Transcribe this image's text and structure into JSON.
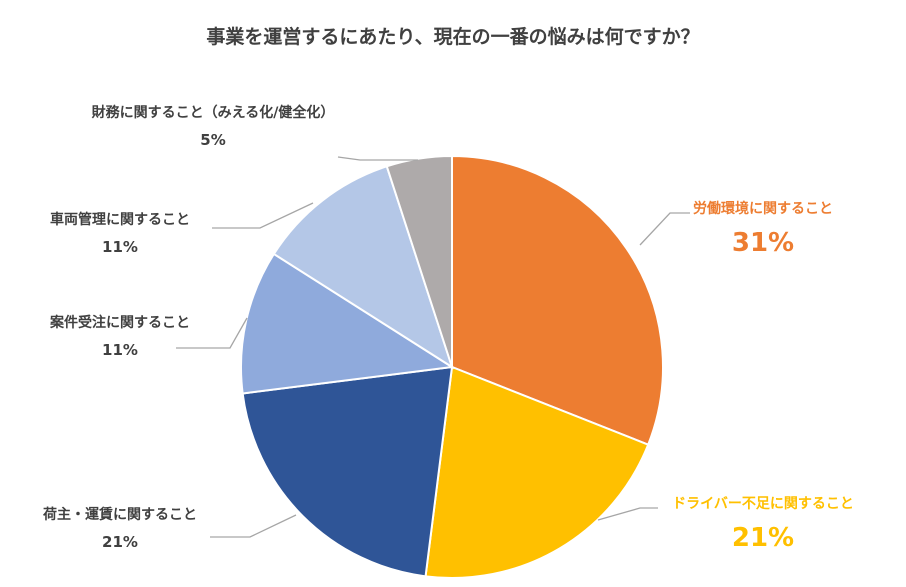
{
  "chart_data": {
    "type": "pie",
    "title": "事業を運営するにあたり、現在の一番の悩みは何ですか？",
    "slices": [
      {
        "label": "労働環境に関すること",
        "value": 31,
        "value_label": "31%",
        "color": "#ED7D31",
        "label_color": "#ED7D31",
        "emphasis": true
      },
      {
        "label": "ドライバー不足に関すること",
        "value": 21,
        "value_label": "21%",
        "color": "#FFC000",
        "label_color": "#FFC000",
        "emphasis": true
      },
      {
        "label": "荷主・運賃に関すること",
        "value": 21,
        "value_label": "21%",
        "color": "#2F5597",
        "label_color": "#404040",
        "emphasis": false
      },
      {
        "label": "案件受注に関すること",
        "value": 11,
        "value_label": "11%",
        "color": "#8FAADC",
        "label_color": "#404040",
        "emphasis": false
      },
      {
        "label": "車両管理に関すること",
        "value": 11,
        "value_label": "11%",
        "color": "#B4C7E7",
        "label_color": "#404040",
        "emphasis": false
      },
      {
        "label": "財務に関すること（みえる化/健全化）",
        "value": 5,
        "value_label": "5%",
        "color": "#AEAAAA",
        "label_color": "#404040",
        "emphasis": false
      }
    ],
    "start_angle": "12 o'clock",
    "direction": "clockwise",
    "legend": "none (data labels beside slices)"
  }
}
